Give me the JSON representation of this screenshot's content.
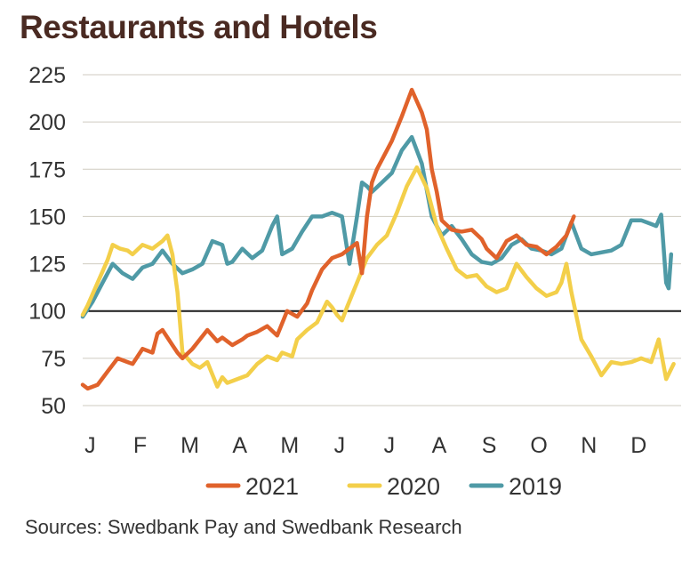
{
  "title": "Restaurants and Hotels",
  "source": "Sources: Swedbank Pay and Swedbank Research",
  "colors": {
    "2021": "#e0622b",
    "2020": "#f3cf4a",
    "2019": "#4f9aa6",
    "baseline": "#1a1a1a",
    "grid": "#cfcbc0"
  },
  "chart_data": {
    "type": "line",
    "title": "Restaurants and Hotels",
    "xlabel": "",
    "ylabel": "",
    "x_ticks": [
      "J",
      "F",
      "M",
      "A",
      "M",
      "J",
      "J",
      "A",
      "S",
      "O",
      "N",
      "D"
    ],
    "yticks": [
      50,
      75,
      100,
      125,
      150,
      175,
      200,
      225
    ],
    "ylim": [
      50,
      225
    ],
    "xlim": [
      0,
      12
    ],
    "reference_line": 100,
    "grid": true,
    "legend_position": "bottom",
    "series": [
      {
        "name": "2021",
        "color": "#e0622b",
        "x": [
          0,
          0.1,
          0.3,
          0.5,
          0.7,
          0.9,
          1.0,
          1.2,
          1.4,
          1.5,
          1.6,
          1.8,
          1.9,
          2.0,
          2.2,
          2.35,
          2.5,
          2.7,
          2.8,
          3.0,
          3.2,
          3.3,
          3.5,
          3.7,
          3.9,
          4.1,
          4.3,
          4.5,
          4.6,
          4.8,
          5.0,
          5.2,
          5.35,
          5.5,
          5.6,
          5.7,
          5.8,
          5.9,
          6.0,
          6.2,
          6.4,
          6.6,
          6.8,
          6.9,
          7.0,
          7.1,
          7.2,
          7.4,
          7.6,
          7.8,
          8.0,
          8.1,
          8.3,
          8.5,
          8.7,
          8.9,
          9.1,
          9.3,
          9.5,
          9.7,
          9.85
        ],
        "y": [
          61,
          59,
          61,
          68,
          75,
          73,
          72,
          80,
          78,
          88,
          90,
          82,
          78,
          75,
          80,
          85,
          90,
          84,
          86,
          82,
          85,
          87,
          89,
          92,
          87,
          100,
          97,
          104,
          111,
          122,
          128,
          130,
          133,
          136,
          120,
          150,
          168,
          175,
          180,
          190,
          203,
          217,
          205,
          196,
          175,
          163,
          148,
          143,
          142,
          143,
          138,
          133,
          128,
          137,
          140,
          135,
          134,
          130,
          134,
          140,
          150
        ]
      },
      {
        "name": "2020",
        "color": "#f3cf4a",
        "x": [
          0,
          0.1,
          0.3,
          0.5,
          0.6,
          0.75,
          0.9,
          1.0,
          1.2,
          1.4,
          1.6,
          1.7,
          1.8,
          1.9,
          2.0,
          2.2,
          2.35,
          2.5,
          2.7,
          2.8,
          2.9,
          3.0,
          3.3,
          3.5,
          3.7,
          3.9,
          4.0,
          4.2,
          4.3,
          4.5,
          4.7,
          4.9,
          5.0,
          5.1,
          5.2,
          5.3,
          5.5,
          5.7,
          5.9,
          6.1,
          6.3,
          6.5,
          6.7,
          6.9,
          7.1,
          7.3,
          7.5,
          7.7,
          7.9,
          8.1,
          8.3,
          8.5,
          8.7,
          8.9,
          9.1,
          9.3,
          9.5,
          9.6,
          9.7,
          9.8,
          10.0,
          10.2,
          10.4,
          10.6,
          10.8,
          11.0,
          11.2,
          11.4,
          11.55,
          11.7,
          11.85
        ],
        "y": [
          98,
          103,
          115,
          127,
          135,
          133,
          132,
          130,
          135,
          133,
          137,
          140,
          130,
          110,
          78,
          72,
          70,
          73,
          60,
          65,
          62,
          63,
          66,
          72,
          76,
          74,
          78,
          76,
          85,
          90,
          94,
          105,
          102,
          98,
          95,
          102,
          115,
          128,
          135,
          140,
          152,
          166,
          176,
          165,
          145,
          133,
          122,
          118,
          119,
          113,
          110,
          112,
          125,
          118,
          112,
          108,
          110,
          115,
          125,
          110,
          85,
          76,
          66,
          73,
          72,
          73,
          75,
          73,
          85,
          64,
          72
        ]
      },
      {
        "name": "2019",
        "color": "#4f9aa6",
        "x": [
          0,
          0.2,
          0.4,
          0.6,
          0.8,
          1.0,
          1.2,
          1.4,
          1.6,
          1.8,
          2.0,
          2.2,
          2.4,
          2.6,
          2.8,
          2.9,
          3.0,
          3.2,
          3.4,
          3.6,
          3.8,
          3.9,
          4.0,
          4.2,
          4.4,
          4.6,
          4.8,
          5.0,
          5.2,
          5.35,
          5.5,
          5.6,
          5.7,
          5.8,
          6.0,
          6.2,
          6.4,
          6.6,
          6.8,
          7.0,
          7.2,
          7.4,
          7.6,
          7.8,
          8.0,
          8.2,
          8.4,
          8.6,
          8.8,
          9.0,
          9.2,
          9.4,
          9.6,
          9.8,
          10.0,
          10.2,
          10.4,
          10.6,
          10.8,
          11.0,
          11.2,
          11.4,
          11.5,
          11.6,
          11.7,
          11.75,
          11.8
        ],
        "y": [
          97,
          105,
          115,
          125,
          120,
          117,
          123,
          125,
          132,
          125,
          120,
          122,
          125,
          137,
          135,
          125,
          126,
          133,
          128,
          132,
          145,
          150,
          130,
          133,
          142,
          150,
          150,
          152,
          150,
          125,
          150,
          168,
          166,
          163,
          168,
          173,
          185,
          192,
          178,
          150,
          140,
          145,
          138,
          130,
          126,
          125,
          128,
          135,
          138,
          133,
          132,
          130,
          133,
          147,
          133,
          130,
          131,
          132,
          135,
          148,
          148,
          146,
          145,
          151,
          115,
          112,
          130
        ]
      }
    ]
  }
}
